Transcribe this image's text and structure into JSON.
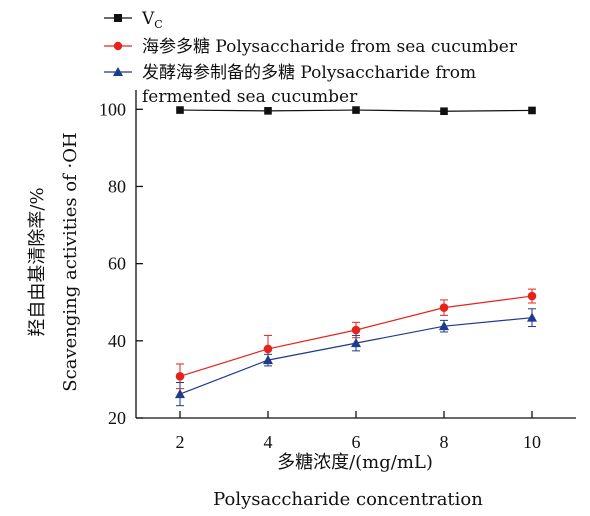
{
  "chart_data": {
    "type": "line",
    "x": [
      2,
      4,
      6,
      8,
      10
    ],
    "xlim": [
      1,
      11
    ],
    "ylim": [
      20,
      105
    ],
    "x_ticks": [
      2,
      4,
      6,
      8,
      10
    ],
    "y_ticks": [
      20,
      40,
      60,
      80,
      100
    ],
    "xlabel_cn": "多糖浓度/(mg/mL)",
    "xlabel_en": "Polysaccharide concentration",
    "ylabel_cn": "羟自由基清除率/%",
    "ylabel_en": "Scavenging activities of ·OH",
    "legend_position": "top-left",
    "grid": false,
    "series": [
      {
        "name": "Vc",
        "name_main": "V",
        "name_sub": "C",
        "marker": "square",
        "color": "#111111",
        "values": [
          99.8,
          99.6,
          99.8,
          99.5,
          99.7
        ],
        "errors": [
          0,
          0,
          0,
          0,
          0
        ]
      },
      {
        "name": "海参多糖 Polysaccharide from sea cucumber",
        "marker": "circle",
        "color": "#e5231b",
        "values": [
          30.8,
          37.9,
          42.8,
          48.6,
          51.6
        ],
        "errors": [
          3.2,
          3.5,
          2.0,
          2.0,
          1.8
        ]
      },
      {
        "name": "发酵海参制备的多糖 Polysaccharide from fermented sea cucumber",
        "name_line1": "发酵海参制备的多糖 Polysaccharide from",
        "name_line2": "fermented sea cucumber",
        "marker": "triangle",
        "color": "#1e3a8a",
        "values": [
          26.2,
          35.0,
          39.4,
          43.8,
          46.0
        ],
        "errors": [
          3.0,
          1.5,
          2.0,
          1.5,
          2.3
        ]
      }
    ]
  }
}
